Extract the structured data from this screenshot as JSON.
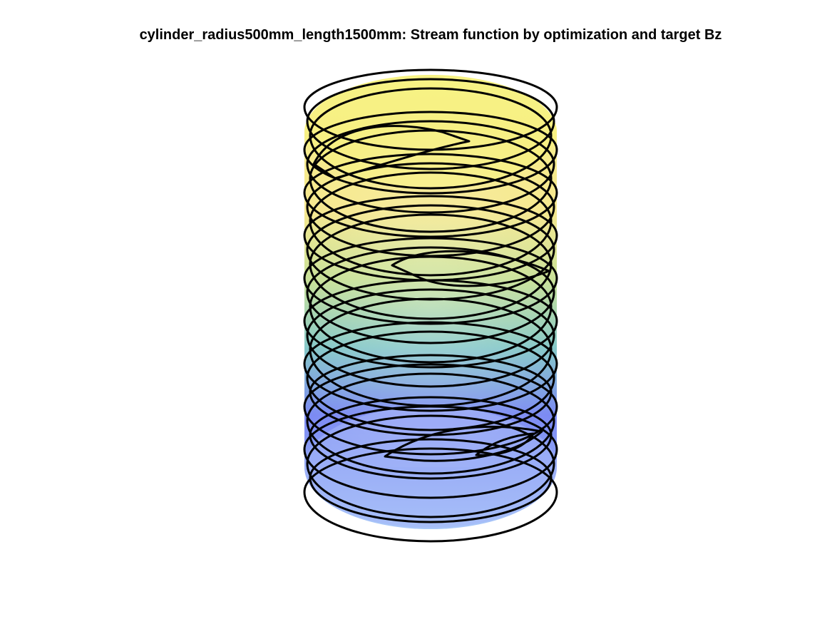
{
  "figure": {
    "title": "cylinder_radius500mm_length1500mm: Stream function by optimization and target Bz"
  },
  "colors": {
    "top": "#f7f26a",
    "upper": "#d9e26a",
    "middle": "#5cb8a8",
    "lower": "#6a6cf0",
    "bottom": "#9db8f5",
    "contour": "#000000"
  }
}
